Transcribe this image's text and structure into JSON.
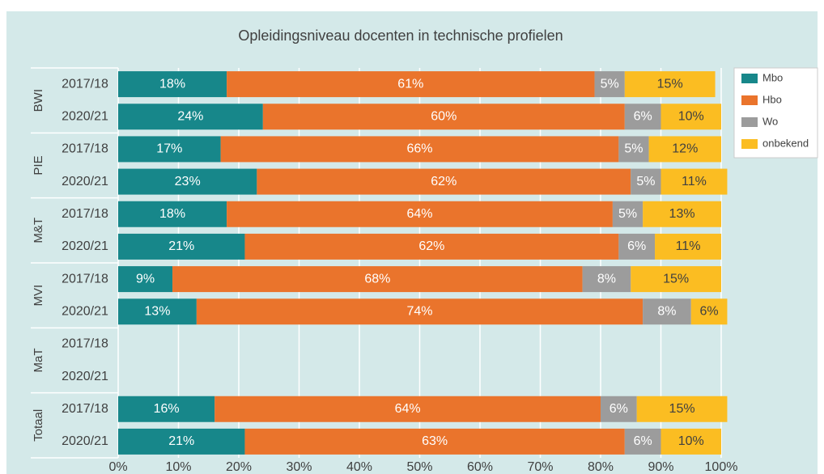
{
  "chart_data": {
    "type": "stacked-bar-horizontal",
    "title": "Opleidingsniveau docenten in technische profielen",
    "groups": [
      "BWI",
      "PIE",
      "M&T",
      "MVI",
      "MaT",
      "Totaal"
    ],
    "categories": [
      "2017/18",
      "2020/21",
      "2017/18",
      "2020/21",
      "2017/18",
      "2020/21",
      "2017/18",
      "2020/21",
      "2017/18",
      "2020/21",
      "2017/18",
      "2020/21"
    ],
    "series": [
      {
        "name": "Mbo",
        "color": "#17878a",
        "values": [
          18,
          24,
          17,
          23,
          18,
          21,
          9,
          13,
          null,
          null,
          16,
          21
        ],
        "value_labels": [
          "18%",
          "24%",
          "17%",
          "23%",
          "18%",
          "21%",
          "9%",
          "13%",
          null,
          null,
          "16%",
          "21%"
        ]
      },
      {
        "name": "Hbo",
        "color": "#ea742c",
        "values": [
          61,
          60,
          66,
          62,
          64,
          62,
          68,
          74,
          null,
          null,
          64,
          63
        ],
        "value_labels": [
          "61%",
          "60%",
          "66%",
          "62%",
          "64%",
          "62%",
          "68%",
          "74%",
          null,
          null,
          "64%",
          "63%"
        ]
      },
      {
        "name": "Wo",
        "color": "#9c9c9c",
        "values": [
          5,
          6,
          5,
          5,
          5,
          6,
          8,
          8,
          null,
          null,
          6,
          6
        ],
        "value_labels": [
          "5%",
          "6%",
          "5%",
          "5%",
          "5%",
          "6%",
          "8%",
          "8%",
          null,
          null,
          "6%",
          "6%"
        ]
      },
      {
        "name": "onbekend",
        "color": "#fbbd22",
        "values": [
          15,
          10,
          12,
          11,
          13,
          11,
          15,
          6,
          null,
          null,
          15,
          10
        ],
        "value_labels": [
          "15%",
          "10%",
          "12%",
          "11%",
          "13%",
          "11%",
          "15%",
          "6%",
          null,
          null,
          "15%",
          "10%"
        ]
      }
    ],
    "xlim": [
      0,
      100
    ],
    "xticks": [
      {
        "value": 0,
        "label": "0%"
      },
      {
        "value": 10,
        "label": "10%"
      },
      {
        "value": 20,
        "label": "20%"
      },
      {
        "value": 30,
        "label": "30%"
      },
      {
        "value": 40,
        "label": "40%"
      },
      {
        "value": 50,
        "label": "50%"
      },
      {
        "value": 60,
        "label": "60%"
      },
      {
        "value": 70,
        "label": "70%"
      },
      {
        "value": 80,
        "label": "80%"
      },
      {
        "value": 90,
        "label": "90%"
      },
      {
        "value": 100,
        "label": "100%"
      }
    ],
    "grid": true,
    "legend": "right"
  }
}
